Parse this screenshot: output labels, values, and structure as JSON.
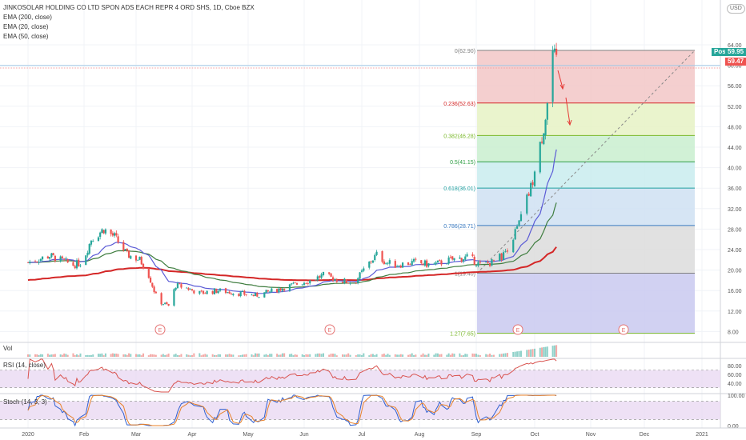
{
  "header": {
    "title": "JINKOSOLAR HOLDING CO LTD SPON ADS EACH REPR 4 ORD SHS, 1D, Cboe BZX",
    "indicators": [
      "EMA (200, close)",
      "EMA (20, close)",
      "EMA (50, close)"
    ],
    "currency": "USD"
  },
  "price_tags": {
    "post_label": "Post",
    "post_value": "59.95",
    "last_value": "59.47"
  },
  "panes": {
    "volume_label": "Vol",
    "rsi_label": "RSI (14, close)",
    "stoch_label": "Stoch (14, 3, 3)"
  },
  "colors": {
    "up": "#26a69a",
    "down": "#ef5350",
    "ema200": "#d42727",
    "ema20": "#5b5bd6",
    "ema50": "#3f7d3f",
    "rsi": "#d9534f",
    "rsi_band": "#ead9f2",
    "post_tag": "#26a69a",
    "last_tag": "#ef5350"
  },
  "chart_data": {
    "type": "candlestick",
    "y_axis_ticks": [
      "8.00",
      "12.00",
      "16.00",
      "20.00",
      "24.00",
      "28.00",
      "32.00",
      "36.00",
      "40.00",
      "44.00",
      "48.00",
      "52.00",
      "56.00",
      "60.00",
      "64.00"
    ],
    "ylim": [
      6.5,
      66.5
    ],
    "x_axis_ticks": [
      "2020",
      "Feb",
      "Mar",
      "Apr",
      "May",
      "Jun",
      "Jul",
      "Aug",
      "Sep",
      "Oct",
      "Nov",
      "Dec",
      "2021"
    ],
    "key_closes": [
      {
        "date": "2020-01",
        "close": 22.0
      },
      {
        "date": "2020-02",
        "close": 26.0
      },
      {
        "date": "2020-03",
        "close": 13.0
      },
      {
        "date": "2020-04",
        "close": 16.5
      },
      {
        "date": "2020-05",
        "close": 15.5
      },
      {
        "date": "2020-06",
        "close": 18.0
      },
      {
        "date": "2020-07",
        "close": 21.0
      },
      {
        "date": "2020-08",
        "close": 21.5
      },
      {
        "date": "2020-09",
        "close": 21.0
      },
      {
        "date": "2020-10",
        "close": 50.0
      },
      {
        "date": "2020-10-12",
        "close": 59.47
      }
    ],
    "fibonacci": [
      {
        "ratio": "0",
        "price": "62.90",
        "color": "#808080"
      },
      {
        "ratio": "0.236",
        "price": "52.63",
        "color": "#d42727"
      },
      {
        "ratio": "0.382",
        "price": "46.28",
        "color": "#7ab82a"
      },
      {
        "ratio": "0.5",
        "price": "41.15",
        "color": "#2f9e44"
      },
      {
        "ratio": "0.618",
        "price": "36.01",
        "color": "#22a0a0"
      },
      {
        "ratio": "0.786",
        "price": "28.71",
        "color": "#3a7ac0"
      },
      {
        "ratio": "1",
        "price": "19.40",
        "color": "#808080"
      },
      {
        "ratio": "1.27",
        "price": "7.65",
        "color": "#7ab82a"
      }
    ],
    "earnings_marker": "E",
    "rsi_ticks": [
      "80.00",
      "60.00",
      "40.00"
    ],
    "stoch_ticks": [
      "100.00",
      "0.00"
    ]
  }
}
